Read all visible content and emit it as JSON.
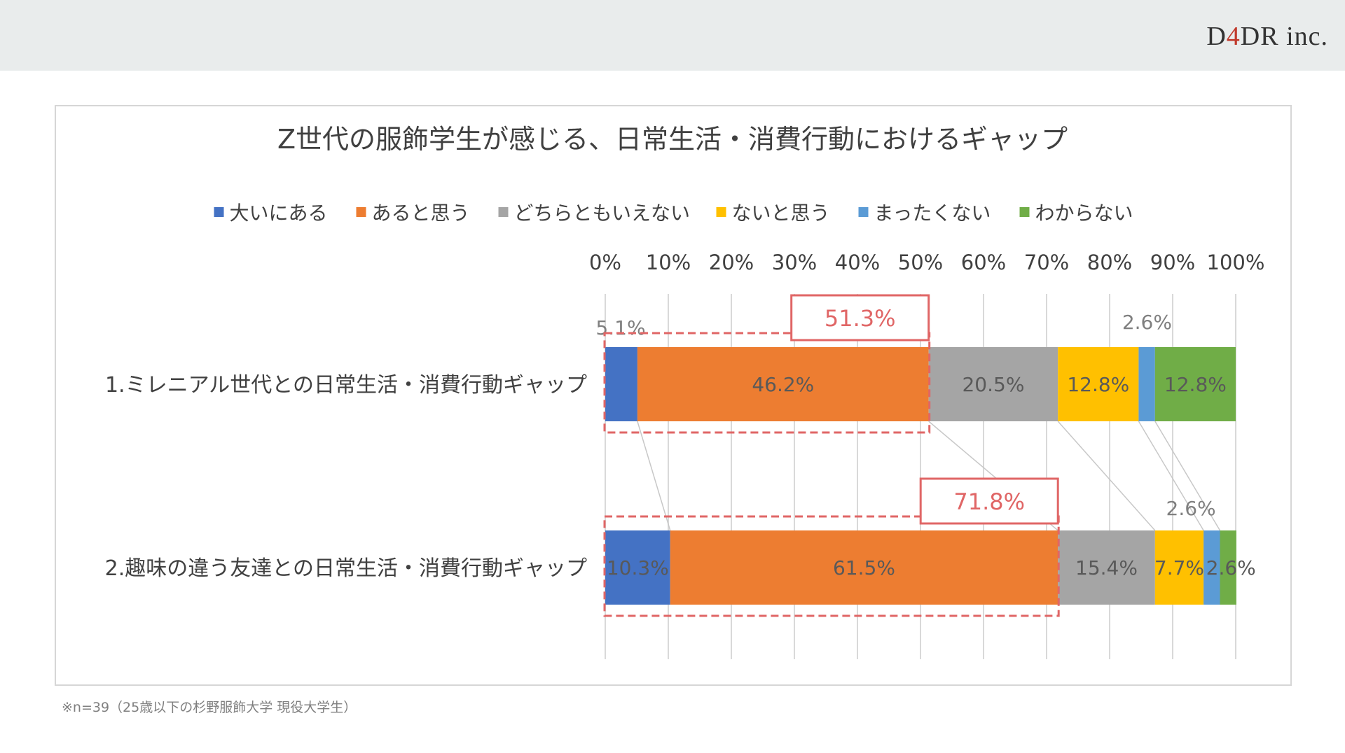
{
  "brand": {
    "pre": "D",
    "four": "4",
    "post": "DR inc."
  },
  "footnote": "※n=39（25歳以下の杉野服飾大学 現役大学生）",
  "colors": {
    "header_bg": "#e9ecec",
    "highlight": "#e06666",
    "grid": "#d9d9d9"
  },
  "chart_data": {
    "type": "bar",
    "orientation": "horizontal",
    "stacked": true,
    "percent": true,
    "title": "Z世代の服飾学生が感じる、日常生活・消費行動におけるギャップ",
    "xlim": [
      0,
      100
    ],
    "x_ticks": [
      "0%",
      "10%",
      "20%",
      "30%",
      "40%",
      "50%",
      "60%",
      "70%",
      "80%",
      "90%",
      "100%"
    ],
    "grid": true,
    "legend_position": "top",
    "categories": [
      "1.ミレニアル世代との日常生活・消費行動ギャップ",
      "2.趣味の違う友達との日常生活・消費行動ギャップ"
    ],
    "series": [
      {
        "name": "大いにある",
        "color": "#4472c4",
        "values": [
          5.1,
          10.3
        ],
        "labels": [
          "5.1%",
          "10.3%"
        ]
      },
      {
        "name": "あると思う",
        "color": "#ed7d31",
        "values": [
          46.2,
          61.5
        ],
        "labels": [
          "46.2%",
          "61.5%"
        ]
      },
      {
        "name": "どちらともいえない",
        "color": "#a5a5a5",
        "values": [
          20.5,
          15.4
        ],
        "labels": [
          "20.5%",
          "15.4%"
        ]
      },
      {
        "name": "ないと思う",
        "color": "#ffc000",
        "values": [
          12.8,
          7.7
        ],
        "labels": [
          "12.8%",
          "7.7%"
        ]
      },
      {
        "name": "まったくない",
        "color": "#5b9bd5",
        "values": [
          2.6,
          2.6
        ],
        "labels": [
          "2.6%",
          "2.6%"
        ]
      },
      {
        "name": "わからない",
        "color": "#70ad47",
        "values": [
          12.8,
          2.6
        ],
        "labels": [
          "12.8%",
          "2.6%"
        ]
      }
    ],
    "highlights": [
      {
        "category_index": 0,
        "value": 51.3,
        "label": "51.3%"
      },
      {
        "category_index": 1,
        "value": 71.8,
        "label": "71.8%"
      }
    ]
  }
}
